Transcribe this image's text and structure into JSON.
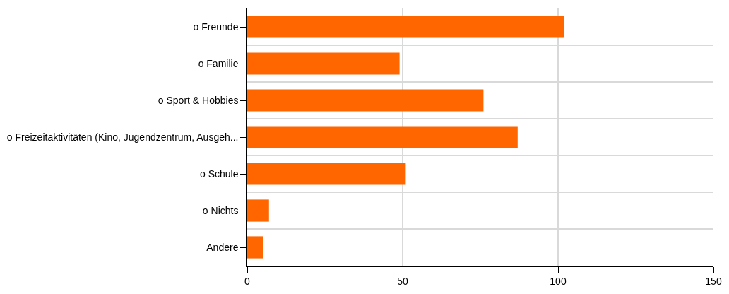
{
  "chart_data": {
    "type": "bar",
    "orientation": "horizontal",
    "categories": [
      "o Freunde",
      "o Familie",
      "o Sport & Hobbies",
      "o Freizeitaktivitäten (Kino, Jugendzentrum, Ausgeh...",
      "o Schule",
      "o Nichts",
      "Andere"
    ],
    "values": [
      102,
      49,
      76,
      87,
      51,
      7,
      5
    ],
    "color": "#ff6600",
    "xlim": [
      0,
      150
    ],
    "xticks": [
      0,
      50,
      100,
      150
    ],
    "grid": true,
    "legend": false
  }
}
